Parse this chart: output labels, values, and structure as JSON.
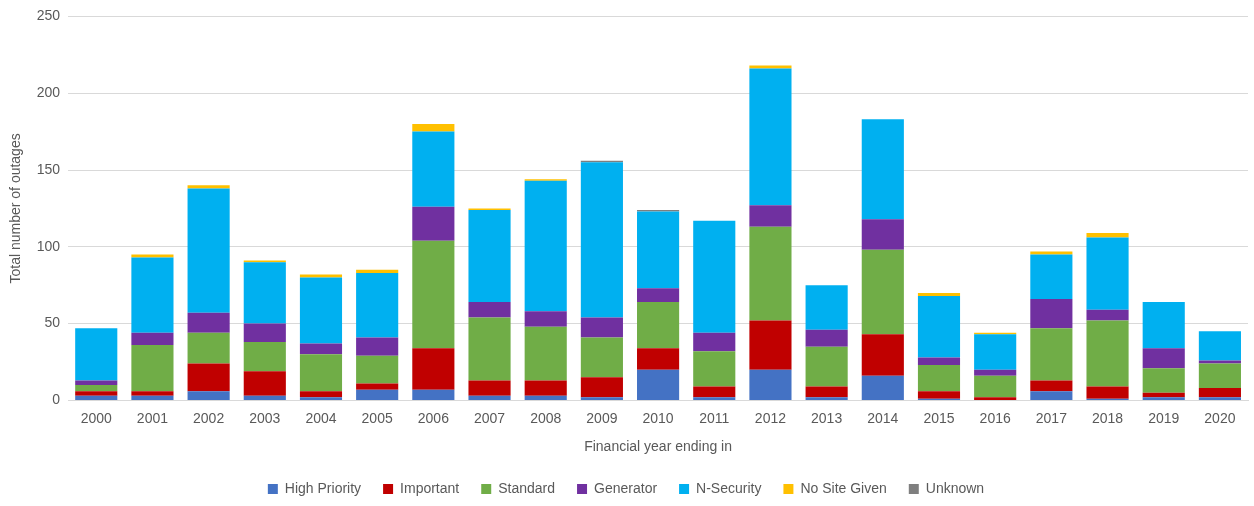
{
  "chart_data": {
    "type": "bar",
    "stacked": true,
    "xlabel": "Financial year ending in",
    "ylabel": "Total number of outages",
    "categories": [
      "2000",
      "2001",
      "2002",
      "2003",
      "2004",
      "2005",
      "2006",
      "2007",
      "2008",
      "2009",
      "2010",
      "2011",
      "2012",
      "2013",
      "2014",
      "2015",
      "2016",
      "2017",
      "2018",
      "2019",
      "2020"
    ],
    "ylim": [
      0,
      250
    ],
    "yticks": [
      0,
      50,
      100,
      150,
      200,
      250
    ],
    "grid": "y",
    "legend": "bottom",
    "series": [
      {
        "name": "High Priority",
        "color": "#4472c4",
        "values": [
          3,
          3,
          6,
          3,
          2,
          7,
          7,
          3,
          3,
          2,
          20,
          2,
          20,
          2,
          16,
          1,
          0,
          6,
          1,
          2,
          2
        ]
      },
      {
        "name": "Important",
        "color": "#c00000",
        "values": [
          3,
          3,
          18,
          16,
          4,
          4,
          27,
          10,
          10,
          13,
          14,
          7,
          32,
          7,
          27,
          5,
          2,
          7,
          8,
          3,
          6
        ]
      },
      {
        "name": "Standard",
        "color": "#70ad47",
        "values": [
          4,
          30,
          20,
          19,
          24,
          18,
          70,
          41,
          35,
          26,
          30,
          23,
          61,
          26,
          55,
          17,
          14,
          34,
          43,
          16,
          16
        ]
      },
      {
        "name": "Generator",
        "color": "#7030a0",
        "values": [
          3,
          8,
          13,
          12,
          7,
          12,
          22,
          10,
          10,
          13,
          9,
          12,
          14,
          11,
          20,
          5,
          4,
          19,
          7,
          13,
          2
        ]
      },
      {
        "name": "N-Security",
        "color": "#00b0f0",
        "values": [
          34,
          49,
          81,
          40,
          43,
          42,
          49,
          60,
          85,
          101,
          50,
          73,
          89,
          29,
          65,
          40,
          23,
          29,
          47,
          30,
          19
        ]
      },
      {
        "name": "No Site Given",
        "color": "#ffc000",
        "values": [
          0,
          2,
          2,
          1,
          2,
          2,
          5,
          1,
          1,
          0,
          0,
          0,
          2,
          0,
          0,
          2,
          1,
          2,
          3,
          0,
          0
        ]
      },
      {
        "name": "Unknown",
        "color": "#7f7f7f",
        "values": [
          0,
          0,
          0,
          0,
          0,
          0,
          0,
          0,
          0,
          1,
          1,
          0,
          0,
          0,
          0,
          0,
          0,
          0,
          0,
          0,
          0
        ]
      }
    ]
  }
}
